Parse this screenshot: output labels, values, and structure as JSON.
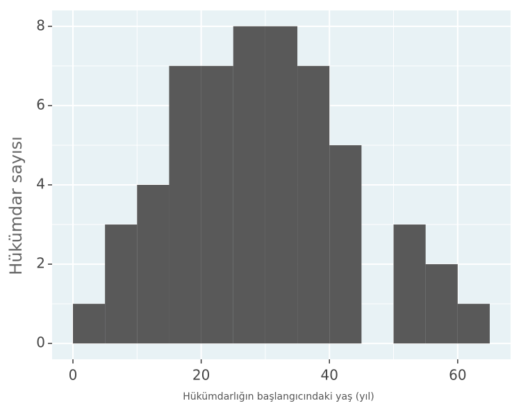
{
  "chart_data": {
    "type": "histogram",
    "x_label": "Hükümdarlığın başlangıcındaki yaş (yıl)",
    "y_label": "Hükümdar sayısı",
    "bins": [
      0,
      5,
      10,
      15,
      20,
      25,
      30,
      35,
      40,
      45,
      50,
      55,
      60,
      65
    ],
    "counts": [
      1,
      3,
      4,
      7,
      7,
      8,
      8,
      7,
      5,
      0,
      3,
      2,
      1
    ],
    "color": "#595959",
    "panel_color": "#e8f2f5",
    "grid": true,
    "xlim": [
      -3.25,
      68.25
    ],
    "xticks": [
      0,
      20,
      40,
      60
    ],
    "xminor": [
      10,
      30,
      50
    ],
    "ylim": [
      -0.4,
      8.4
    ],
    "yticks": [
      0,
      2,
      4,
      6,
      8
    ],
    "yminor": [
      1,
      3,
      5,
      7
    ]
  }
}
